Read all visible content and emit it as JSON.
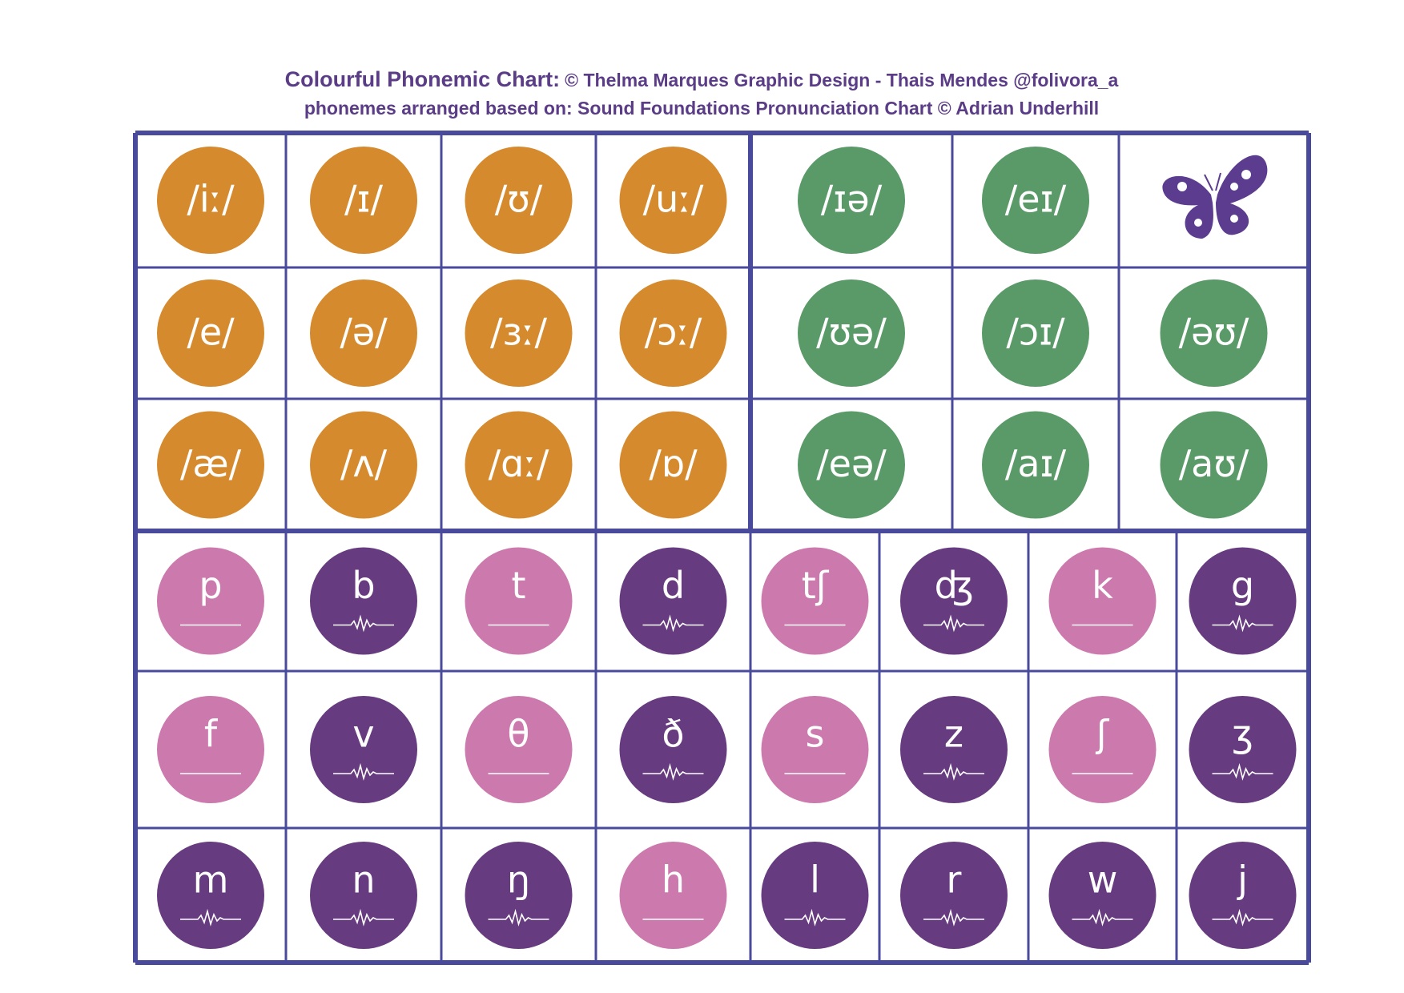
{
  "header": {
    "title": "Colourful Phonemic Chart:",
    "credit": "© Thelma Marques Graphic Design - Thais Mendes @folivora_a",
    "source": "phonemes arranged based on: Sound Foundations Pronunciation Chart © Adrian Underhill"
  },
  "monophthongs": {
    "color": "#d68a2e",
    "rows": [
      [
        "/iː/",
        "/ɪ/",
        "/ʊ/",
        "/uː/"
      ],
      [
        "/e/",
        "/ə/",
        "/ɜː/",
        "/ɔː/"
      ],
      [
        "/æ/",
        "/ʌ/",
        "/ɑː/",
        "/ɒ/"
      ]
    ]
  },
  "diphthongs": {
    "color": "#5a9a68",
    "rows": [
      [
        "/ɪə/",
        "/eɪ/"
      ],
      [
        "/ʊə/",
        "/ɔɪ/",
        "/əʊ/"
      ],
      [
        "/eə/",
        "/aɪ/",
        "/aʊ/"
      ]
    ]
  },
  "consonants": {
    "voiceless_color": "#cc79ad",
    "voiced_color": "#673b7f",
    "rows": [
      [
        {
          "symbol": "p",
          "voiced": false
        },
        {
          "symbol": "b",
          "voiced": true
        },
        {
          "symbol": "t",
          "voiced": false
        },
        {
          "symbol": "d",
          "voiced": true
        },
        {
          "symbol": "tʃ",
          "voiced": false
        },
        {
          "symbol": "ʤ",
          "voiced": true
        },
        {
          "symbol": "k",
          "voiced": false
        },
        {
          "symbol": "g",
          "voiced": true
        }
      ],
      [
        {
          "symbol": "f",
          "voiced": false
        },
        {
          "symbol": "v",
          "voiced": true
        },
        {
          "symbol": "θ",
          "voiced": false
        },
        {
          "symbol": "ð",
          "voiced": true
        },
        {
          "symbol": "s",
          "voiced": false
        },
        {
          "symbol": "z",
          "voiced": true
        },
        {
          "symbol": "ʃ",
          "voiced": false
        },
        {
          "symbol": "ʒ",
          "voiced": true
        }
      ],
      [
        {
          "symbol": "m",
          "voiced": true
        },
        {
          "symbol": "n",
          "voiced": true
        },
        {
          "symbol": "ŋ",
          "voiced": true
        },
        {
          "symbol": "h",
          "voiced": false
        },
        {
          "symbol": "l",
          "voiced": true
        },
        {
          "symbol": "r",
          "voiced": true
        },
        {
          "symbol": "w",
          "voiced": true
        },
        {
          "symbol": "j",
          "voiced": true
        }
      ]
    ]
  }
}
